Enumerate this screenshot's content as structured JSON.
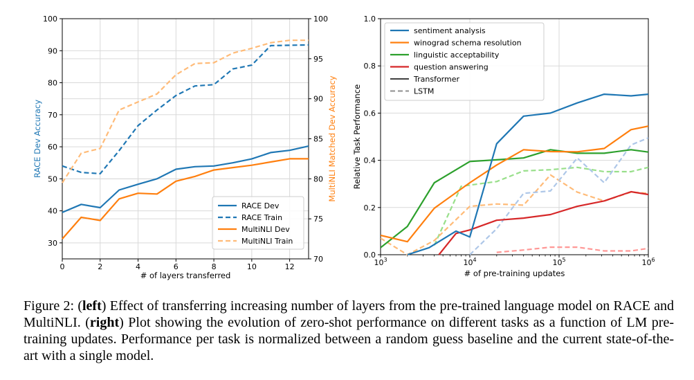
{
  "chart_data": [
    {
      "type": "line",
      "xlabel": "# of layers transferred",
      "ylabel_left": "RACE Dev Accuracy",
      "ylabel_right": "MultiNLI Matched Dev Accuracy",
      "xlim": [
        0,
        13
      ],
      "ylim_left": [
        25,
        100
      ],
      "ylim_right": [
        70,
        100
      ],
      "x_ticks": [
        0,
        2,
        4,
        6,
        8,
        10,
        12
      ],
      "y_ticks_left": [
        30,
        40,
        50,
        60,
        70,
        80,
        90,
        100
      ],
      "y_ticks_right": [
        70,
        75,
        80,
        85,
        90,
        95,
        100
      ],
      "grid": true,
      "legend_position": "lower-right",
      "x": [
        0,
        1,
        2,
        3,
        4,
        5,
        6,
        7,
        8,
        9,
        10,
        11,
        12,
        13
      ],
      "series": [
        {
          "name": "RACE Dev",
          "axis": "left",
          "color": "#1f77b4",
          "style": "solid",
          "values": [
            39.5,
            42,
            41,
            46.5,
            48.3,
            50,
            53,
            53.8,
            54,
            55,
            56.2,
            58.2,
            58.9,
            60.2
          ]
        },
        {
          "name": "RACE Train",
          "axis": "left",
          "color": "#1f77b4",
          "style": "dashed",
          "values": [
            54,
            52,
            51.6,
            58.8,
            66.6,
            71.5,
            76,
            79,
            79.4,
            84.3,
            85.5,
            91.6,
            91.7,
            91.8
          ]
        },
        {
          "name": "MultiNLI Dev",
          "axis": "right",
          "color": "#ff7f0e",
          "style": "solid",
          "values": [
            72.5,
            75.2,
            74.8,
            77.5,
            78.2,
            78.1,
            79.7,
            80.3,
            81.1,
            81.4,
            81.7,
            82.1,
            82.5,
            82.5
          ]
        },
        {
          "name": "MultiNLI Train",
          "axis": "right",
          "color": "#ffbb78",
          "style": "dashed",
          "values": [
            79.5,
            83.2,
            83.8,
            88.6,
            89.6,
            90.6,
            93,
            94.4,
            94.5,
            95.7,
            96.3,
            97,
            97.3,
            97.3
          ]
        }
      ]
    },
    {
      "type": "line",
      "xscale": "log",
      "xlabel": "# of pre-training updates",
      "ylabel": "Relative Task Performance",
      "xlim": [
        1000,
        1000000
      ],
      "ylim": [
        0,
        1.0
      ],
      "x_ticks": [
        "10^3",
        "10^4",
        "10^5",
        "10^6"
      ],
      "y_ticks": [
        "0.0",
        "0.2",
        "0.4",
        "0.6",
        "0.8",
        "1.0"
      ],
      "grid": true,
      "legend_position": "upper-left",
      "legend": [
        {
          "label": "sentiment analysis",
          "color": "#1f77b4",
          "style": "solid"
        },
        {
          "label": "winograd schema resolution",
          "color": "#ff7f0e",
          "style": "solid"
        },
        {
          "label": "linguistic acceptability",
          "color": "#2ca02c",
          "style": "solid"
        },
        {
          "label": "question answering",
          "color": "#d62728",
          "style": "solid"
        },
        {
          "label": "Transformer",
          "color": "#000000",
          "style": "solid"
        },
        {
          "label": "LSTM",
          "color": "#999999",
          "style": "dashed"
        }
      ],
      "series": [
        {
          "name": "sentiment analysis",
          "model": "Transformer",
          "color": "#1f77b4",
          "style": "solid",
          "points": [
            [
              2000,
              0
            ],
            [
              3500,
              0.03
            ],
            [
              7000,
              0.1
            ],
            [
              10000,
              0.075
            ],
            [
              20000,
              0.47
            ],
            [
              40000,
              0.587
            ],
            [
              80000,
              0.6
            ],
            [
              160000,
              0.643
            ],
            [
              320000,
              0.68
            ],
            [
              640000,
              0.673
            ],
            [
              1000000,
              0.68
            ]
          ]
        },
        {
          "name": "winograd schema resolution",
          "model": "Transformer",
          "color": "#ff7f0e",
          "style": "solid",
          "points": [
            [
              1000,
              0.082
            ],
            [
              2000,
              0.055
            ],
            [
              4000,
              0.197
            ],
            [
              10000,
              0.305
            ],
            [
              20000,
              0.38
            ],
            [
              40000,
              0.445
            ],
            [
              80000,
              0.437
            ],
            [
              160000,
              0.436
            ],
            [
              320000,
              0.45
            ],
            [
              640000,
              0.53
            ],
            [
              1000000,
              0.545
            ]
          ]
        },
        {
          "name": "linguistic acceptability",
          "model": "Transformer",
          "color": "#2ca02c",
          "style": "solid",
          "points": [
            [
              1000,
              0.03
            ],
            [
              2000,
              0.12
            ],
            [
              4000,
              0.305
            ],
            [
              10000,
              0.395
            ],
            [
              20000,
              0.402
            ],
            [
              40000,
              0.41
            ],
            [
              80000,
              0.445
            ],
            [
              160000,
              0.43
            ],
            [
              320000,
              0.43
            ],
            [
              640000,
              0.445
            ],
            [
              1000000,
              0.435
            ]
          ]
        },
        {
          "name": "question answering",
          "model": "Transformer",
          "color": "#d62728",
          "style": "solid",
          "points": [
            [
              4500,
              0
            ],
            [
              7000,
              0.09
            ],
            [
              10000,
              0.105
            ],
            [
              20000,
              0.146
            ],
            [
              40000,
              0.155
            ],
            [
              80000,
              0.17
            ],
            [
              160000,
              0.205
            ],
            [
              320000,
              0.228
            ],
            [
              640000,
              0.267
            ],
            [
              1000000,
              0.255
            ]
          ]
        },
        {
          "name": "sentiment analysis",
          "model": "LSTM",
          "color": "#aec7e8",
          "style": "dashed",
          "points": [
            [
              10000,
              0
            ],
            [
              20000,
              0.11
            ],
            [
              40000,
              0.26
            ],
            [
              80000,
              0.27
            ],
            [
              160000,
              0.41
            ],
            [
              320000,
              0.305
            ],
            [
              640000,
              0.465
            ],
            [
              1000000,
              0.495
            ]
          ]
        },
        {
          "name": "winograd schema resolution",
          "model": "LSTM",
          "color": "#ffbb78",
          "style": "dashed",
          "points": [
            [
              1000,
              0.07
            ],
            [
              2000,
              0
            ],
            [
              4000,
              0.06
            ],
            [
              10000,
              0.205
            ],
            [
              20000,
              0.215
            ],
            [
              40000,
              0.21
            ],
            [
              80000,
              0.338
            ],
            [
              160000,
              0.265
            ],
            [
              320000,
              0.228
            ],
            [
              640000,
              0.265
            ],
            [
              1000000,
              0.26
            ]
          ]
        },
        {
          "name": "linguistic acceptability",
          "model": "LSTM",
          "color": "#98df8a",
          "style": "dashed",
          "points": [
            [
              4000,
              0.04
            ],
            [
              8000,
              0.29
            ],
            [
              20000,
              0.31
            ],
            [
              40000,
              0.355
            ],
            [
              80000,
              0.36
            ],
            [
              160000,
              0.37
            ],
            [
              320000,
              0.352
            ],
            [
              640000,
              0.352
            ],
            [
              1000000,
              0.37
            ]
          ]
        },
        {
          "name": "question answering",
          "model": "LSTM",
          "color": "#ff9896",
          "style": "dashed",
          "points": [
            [
              20000,
              0.01
            ],
            [
              40000,
              0.02
            ],
            [
              80000,
              0.032
            ],
            [
              160000,
              0.032
            ],
            [
              320000,
              0.016
            ],
            [
              640000,
              0.016
            ],
            [
              1000000,
              0.027
            ]
          ]
        }
      ]
    }
  ],
  "caption": {
    "figure_label": "Figure 2:",
    "left_tag": "left",
    "left_text": " Effect of transferring increasing number of layers from the pre-trained language model on RACE and MultiNLI.",
    "right_tag": "right",
    "right_text": " Plot showing the evolution of zero-shot performance on different tasks as a function of LM pre-training updates. Performance per task is normalized between a random guess baseline and the current state-of-the-art with a single model."
  }
}
